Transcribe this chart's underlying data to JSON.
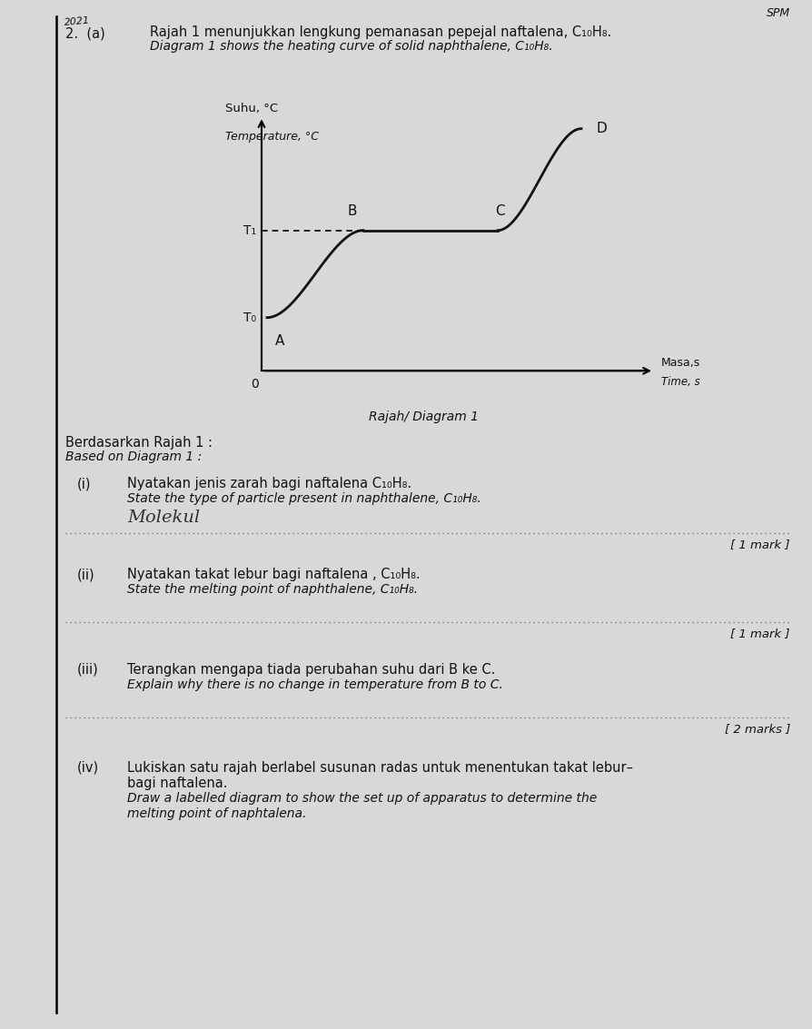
{
  "background_color": "#d8d8d8",
  "page_width": 8.94,
  "page_height": 11.33,
  "header_text_line1": "Rajah 1 menunjukkan lengkung pemanasan pepejal naftalena, C₁₀H₈.",
  "header_text_line1_italic": "Diagram 1 shows the heating curve of solid naphthalene, C₁₀H₈.",
  "header_year": "2021",
  "header_spm": "SPM",
  "ylabel_line1": "Suhu, °C",
  "ylabel_line2": "Temperature, °C",
  "xlabel_line1": "Masa,s",
  "xlabel_line2": "Time, s",
  "diagram_caption": "Rajah/ Diagram 1",
  "T1_label": "T₁",
  "T0_label": "T₀",
  "based_line1": "Berdasarkan Rajah 1 :",
  "based_line2": "Based on Diagram 1 :",
  "q_i_num": "(i)",
  "q_i_line1": "Nyatakan jenis zarah bagi naftalena C₁₀H₈.",
  "q_i_line2": "State the type of particle present in naphthalene, C₁₀H₈.",
  "q_i_answer": "Molekul",
  "q_i_mark": "[ 1 mark ]",
  "q_ii_num": "(ii)",
  "q_ii_line1": "Nyatakan takat lebur bagi naftalena , C₁₀H₈.",
  "q_ii_line2": "State the melting point of naphthalene, C₁₀H₈.",
  "q_ii_mark": "[ 1 mark ]",
  "q_iii_num": "(iii)",
  "q_iii_line1": "Terangkan mengapa tiada perubahan suhu dari B ke C.",
  "q_iii_line2": "Explain why there is no change in temperature from B to C.",
  "q_iii_mark": "[ 2 marks ]",
  "q_iv_num": "(iv)",
  "q_iv_line1": "Lukiskan satu rajah berlabel susunan radas untuk menentukan takat lebur–",
  "q_iv_line1b": "bagi naftalena.",
  "q_iv_line2": "Draw a labelled diagram to show the set up of apparatus to determine the",
  "q_iv_line2b": "melting point of naphtalena.",
  "dotted_line_color": "#666666",
  "text_color": "#111111",
  "curve_color": "#111111"
}
